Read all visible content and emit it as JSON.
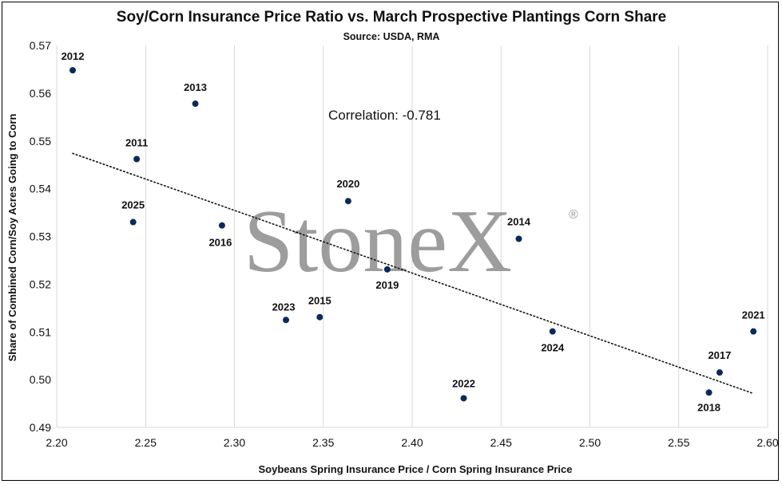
{
  "chart_data": {
    "type": "scatter",
    "title": "Soy/Corn Insurance Price Ratio vs. March Prospective Plantings Corn Share",
    "subtitle": "Source: USDA, RMA",
    "xlabel": "Soybeans Spring Insurance Price / Corn Spring Insurance Price",
    "ylabel": "Share of Combined Corn/Soy Acres Going to Corn",
    "xlim": [
      2.2,
      2.6
    ],
    "ylim": [
      0.49,
      0.57
    ],
    "x_ticks": [
      "2.20",
      "2.25",
      "2.30",
      "2.35",
      "2.40",
      "2.45",
      "2.50",
      "2.55",
      "2.60"
    ],
    "y_ticks": [
      "0.49",
      "0.50",
      "0.51",
      "0.52",
      "0.53",
      "0.54",
      "0.55",
      "0.56",
      "0.57"
    ],
    "grid": "vertical",
    "marker_color": "#0b2a5b",
    "points": [
      {
        "label": "2012",
        "x": 2.209,
        "y": 0.5648
      },
      {
        "label": "2013",
        "x": 2.278,
        "y": 0.5578
      },
      {
        "label": "2011",
        "x": 2.245,
        "y": 0.5462
      },
      {
        "label": "2025",
        "x": 2.243,
        "y": 0.533
      },
      {
        "label": "2016",
        "x": 2.293,
        "y": 0.5323
      },
      {
        "label": "2020",
        "x": 2.364,
        "y": 0.5374
      },
      {
        "label": "2019",
        "x": 2.386,
        "y": 0.5231
      },
      {
        "label": "2014",
        "x": 2.46,
        "y": 0.5295
      },
      {
        "label": "2023",
        "x": 2.329,
        "y": 0.5125
      },
      {
        "label": "2015",
        "x": 2.348,
        "y": 0.5131
      },
      {
        "label": "2022",
        "x": 2.429,
        "y": 0.4961
      },
      {
        "label": "2024",
        "x": 2.479,
        "y": 0.5101
      },
      {
        "label": "2021",
        "x": 2.592,
        "y": 0.5101
      },
      {
        "label": "2017",
        "x": 2.573,
        "y": 0.5015
      },
      {
        "label": "2018",
        "x": 2.567,
        "y": 0.4973
      }
    ],
    "trendline": {
      "style": "dotted",
      "x": [
        2.209,
        2.592
      ],
      "y": [
        0.5474,
        0.4971
      ]
    },
    "annotation": "Correlation: -0.781",
    "watermark": "StoneX",
    "watermark_mark": "®"
  }
}
